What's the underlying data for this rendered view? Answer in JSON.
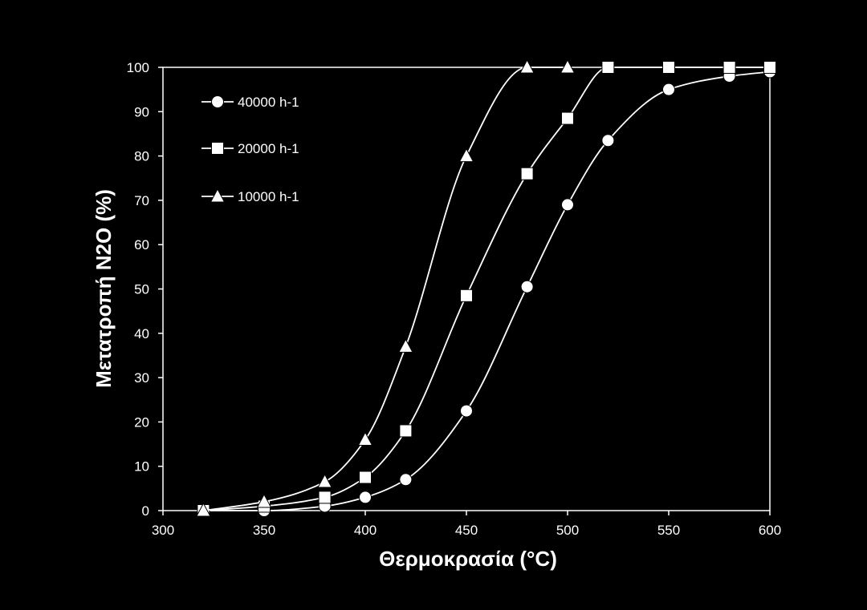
{
  "chart_data": {
    "type": "line",
    "xlabel": "Θερμοκρασία (°C)",
    "ylabel": "Μετατροπή N2O (%)",
    "xlim": [
      300,
      600
    ],
    "ylim": [
      0,
      100
    ],
    "xticks": [
      "300",
      "350",
      "400",
      "450",
      "500",
      "550",
      "600"
    ],
    "yticks": [
      "0",
      "10",
      "20",
      "30",
      "40",
      "50",
      "60",
      "70",
      "80",
      "90",
      "100"
    ],
    "grid": false,
    "legend_position": "top-left",
    "background_color": "#000000",
    "foreground_color": "#ffffff",
    "series": [
      {
        "name": "40000 h-1",
        "marker": "circle",
        "x": [
          320,
          350,
          380,
          400,
          420,
          450,
          480,
          500,
          520,
          550,
          580,
          600
        ],
        "y": [
          0,
          0,
          1,
          3,
          7,
          22.5,
          50.5,
          69,
          83.5,
          95,
          98,
          99
        ]
      },
      {
        "name": "20000 h-1",
        "marker": "square",
        "x": [
          320,
          350,
          380,
          400,
          420,
          450,
          480,
          500,
          520,
          550,
          580,
          600
        ],
        "y": [
          0,
          1,
          3,
          7.5,
          18,
          48.5,
          76,
          88.5,
          100,
          100,
          100,
          100
        ]
      },
      {
        "name": "10000 h-1",
        "marker": "triangle",
        "x": [
          320,
          350,
          380,
          400,
          420,
          450,
          480,
          500
        ],
        "y": [
          0,
          2,
          6.5,
          16,
          37,
          80,
          100,
          100
        ]
      }
    ]
  }
}
